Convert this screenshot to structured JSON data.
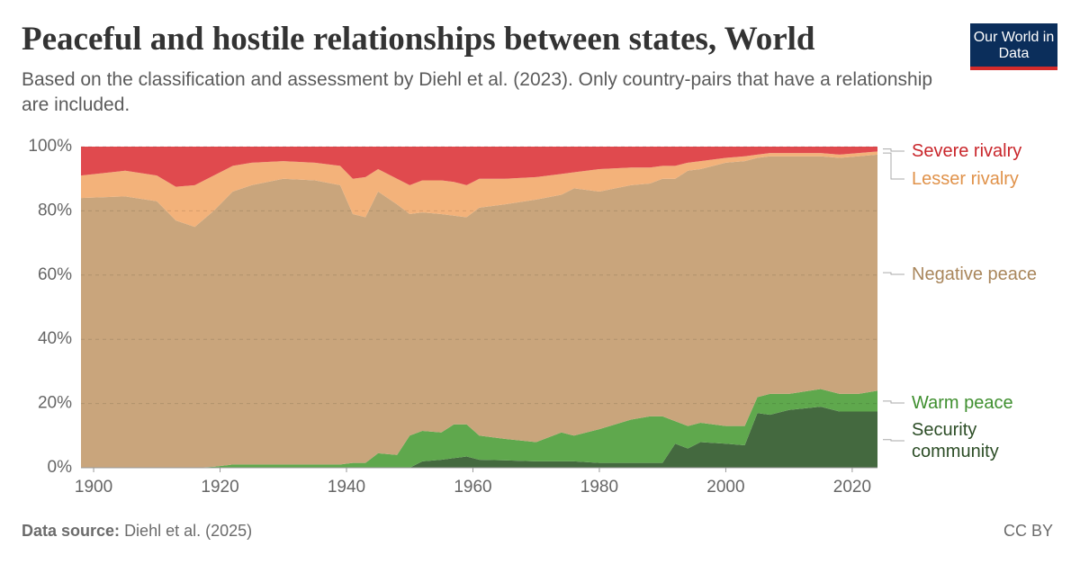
{
  "title": "Peaceful and hostile relationships between states, World",
  "subtitle": "Based on the classification and assessment by Diehl et al. (2023). Only country-pairs that have a relationship are included.",
  "logo": "Our World in Data",
  "source_label": "Data source:",
  "source": "Diehl et al. (2025)",
  "license": "CC BY",
  "chart_data": {
    "type": "stacked_area",
    "x": [
      1898,
      1905,
      1910,
      1913,
      1916,
      1919,
      1922,
      1925,
      1930,
      1935,
      1939,
      1941,
      1943,
      1945,
      1948,
      1950,
      1952,
      1955,
      1957,
      1959,
      1961,
      1965,
      1970,
      1974,
      1976,
      1980,
      1985,
      1988,
      1990,
      1992,
      1994,
      1996,
      2000,
      2003,
      2005,
      2007,
      2010,
      2015,
      2018,
      2021,
      2024
    ],
    "series": [
      {
        "name": "Security community",
        "color": "#44693f",
        "label_color": "#2c4d26",
        "values": [
          0,
          0,
          0,
          0,
          0,
          0,
          0,
          0,
          0,
          0,
          0,
          0,
          0,
          0,
          0,
          0,
          2,
          2.5,
          3,
          3.5,
          2.5,
          2.3,
          2,
          2,
          2,
          1.5,
          1.5,
          1.5,
          1.5,
          7.5,
          6,
          8,
          7.5,
          7,
          17,
          16.5,
          18,
          19,
          17.5,
          17.5,
          17.5
        ]
      },
      {
        "name": "Warm peace",
        "color": "#5fa84d",
        "label_color": "#3f8f2f",
        "values": [
          0,
          0,
          0,
          0,
          0,
          0.3,
          1,
          1,
          1,
          1,
          1,
          1.5,
          1.5,
          4.5,
          4,
          10,
          9.5,
          8.5,
          10.5,
          10,
          7.5,
          6.7,
          6,
          9,
          8,
          10.5,
          13.5,
          14.5,
          14.5,
          7,
          7,
          6,
          5.5,
          6,
          5,
          6.5,
          5,
          5.5,
          5.5,
          5.5,
          6.5
        ]
      },
      {
        "name": "Negative peace",
        "color": "#c9a57c",
        "label_color": "#a9865b",
        "values": [
          84,
          84.5,
          83,
          77,
          75,
          79.7,
          85,
          87,
          89,
          88.5,
          87,
          77.5,
          76.5,
          81.5,
          78,
          69,
          68,
          68,
          65,
          64.5,
          71,
          73,
          75.5,
          74,
          77,
          74,
          73,
          72.5,
          74,
          75.5,
          79.5,
          79,
          82,
          82.5,
          74.5,
          74,
          74,
          72.5,
          73.5,
          74,
          73.5
        ]
      },
      {
        "name": "Lesser rivalry",
        "color": "#f3b27a",
        "label_color": "#e0924a",
        "values": [
          7,
          8,
          8,
          10.5,
          13,
          11,
          8,
          7,
          5.5,
          5.5,
          6,
          11,
          12.5,
          7,
          8,
          9,
          10,
          10.5,
          10.5,
          10,
          9,
          8,
          7,
          6.5,
          5,
          7,
          5.5,
          5,
          4,
          4,
          2.5,
          2.5,
          1.5,
          1.5,
          1,
          1,
          1,
          1,
          1,
          1,
          1
        ]
      },
      {
        "name": "Severe rivalry",
        "color": "#e04a4e",
        "label_color": "#c9262b",
        "values": [
          9,
          7.5,
          9,
          12.5,
          12,
          9,
          6,
          5,
          4.5,
          5,
          6,
          10,
          9.5,
          7,
          10,
          12,
          10.5,
          10.5,
          11,
          12,
          10,
          10,
          9.5,
          8.5,
          8,
          7,
          6.5,
          6.5,
          6,
          6,
          5,
          4.5,
          3.5,
          3,
          2.5,
          2,
          2,
          2,
          2.5,
          2,
          1.5
        ]
      }
    ],
    "xlim": [
      1898,
      2024
    ],
    "xticks": [
      1900,
      1920,
      1940,
      1960,
      1980,
      2000,
      2020
    ],
    "ylim": [
      0,
      100
    ],
    "yticks": [
      {
        "value": 0,
        "label": "0%"
      },
      {
        "value": 20,
        "label": "20%"
      },
      {
        "value": 40,
        "label": "40%"
      },
      {
        "value": 60,
        "label": "60%"
      },
      {
        "value": 80,
        "label": "80%"
      },
      {
        "value": 100,
        "label": "100%"
      }
    ],
    "grid": true
  }
}
